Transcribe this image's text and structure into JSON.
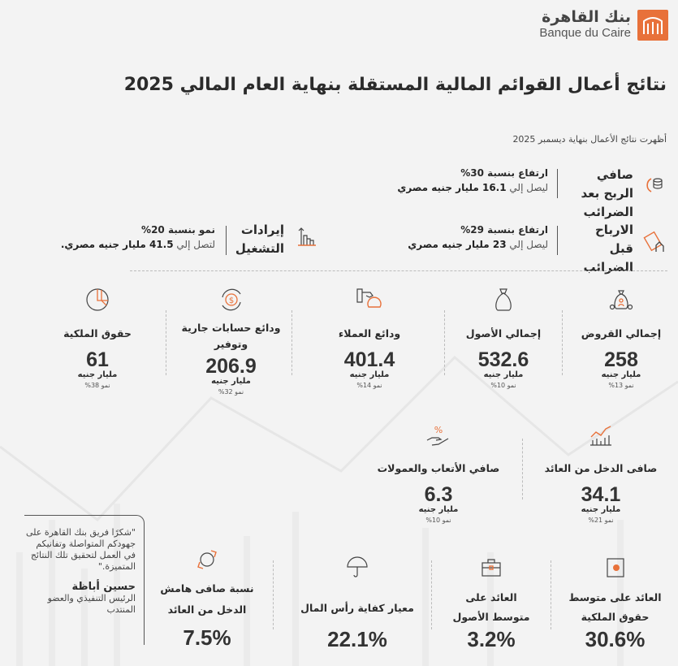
{
  "brand": {
    "name_ar": "بنك القاهرة",
    "name_en": "Banque du Caire",
    "accent": "#e8713a"
  },
  "header": {
    "title": "نتائج أعمال القوائم المالية المستقلة بنهاية العام المالي 2025",
    "subtitle": "أظهرت نتائج الأعمال بنهاية ديسمبر 2025"
  },
  "highlights": [
    {
      "label": "صافي الربح بعد الضرائب",
      "line1": "ارتفاع بنسبة 30%",
      "prefix": "ليصل إلي",
      "value": "16.1 مليار جنيه مصري",
      "icon": "coins-growth-icon"
    },
    {
      "label": "الارباح قبل الضرائب",
      "line1": "ارتفاع بنسبة 29%",
      "prefix": "ليصل إلي",
      "value": "23 مليار جنيه مصري",
      "icon": "money-hand-icon"
    },
    {
      "label": "إيرادات التشغيل",
      "line1": "نمو بنسبة 20%",
      "prefix": "لتصل إلي",
      "value": "41.5 مليار جنيه مصري.",
      "icon": "bar-chart-up-icon"
    }
  ],
  "metrics": [
    {
      "label": "إجمالي القروض",
      "value": "258",
      "unit": "مليار جنيه",
      "growth": "نمو 13%"
    },
    {
      "label": "إجمالي الأصول",
      "value": "532.6",
      "unit": "مليار جنيه",
      "growth": "نمو 10%"
    },
    {
      "label": "ودائع العملاء",
      "value": "401.4",
      "unit": "مليار جنيه",
      "growth": "نمو 14%"
    },
    {
      "label": "ودائع حسابات جارية وتوفير",
      "value": "206.9",
      "unit": "مليار جنيه",
      "growth": "نمو 32%"
    },
    {
      "label": "حقوق الملكية",
      "value": "61",
      "unit": "مليار جنيه",
      "growth": "نمو 38%"
    }
  ],
  "income": [
    {
      "label": "صافى الدخل من العائد",
      "value": "34.1",
      "unit": "مليار جنيه",
      "growth": "نمو 21%"
    },
    {
      "label": "صافي الأتعاب والعمولات",
      "value": "6.3",
      "unit": "مليار جنيه",
      "growth": "نمو 10%"
    }
  ],
  "ratios": [
    {
      "label": "العائد على متوسط حقوق الملكية",
      "value": "30.6%"
    },
    {
      "label": "العائد على متوسط الأصول",
      "value": "3.2%"
    },
    {
      "label": "معيار كفاية رأس المال",
      "value": "22.1%"
    },
    {
      "label": "نسبة صافى هامش الدخل من العائد",
      "value": "7.5%"
    }
  ],
  "quote": {
    "text": "\"شكرًا فريق بنك القاهرة على جهودكم المتواصلة وتفانيكم في العمل لتحقيق تلك النتائج المتميزة.\"",
    "name": "حسين أباظة",
    "role": "الرئيس التنفيذي والعضو المنتدب"
  }
}
